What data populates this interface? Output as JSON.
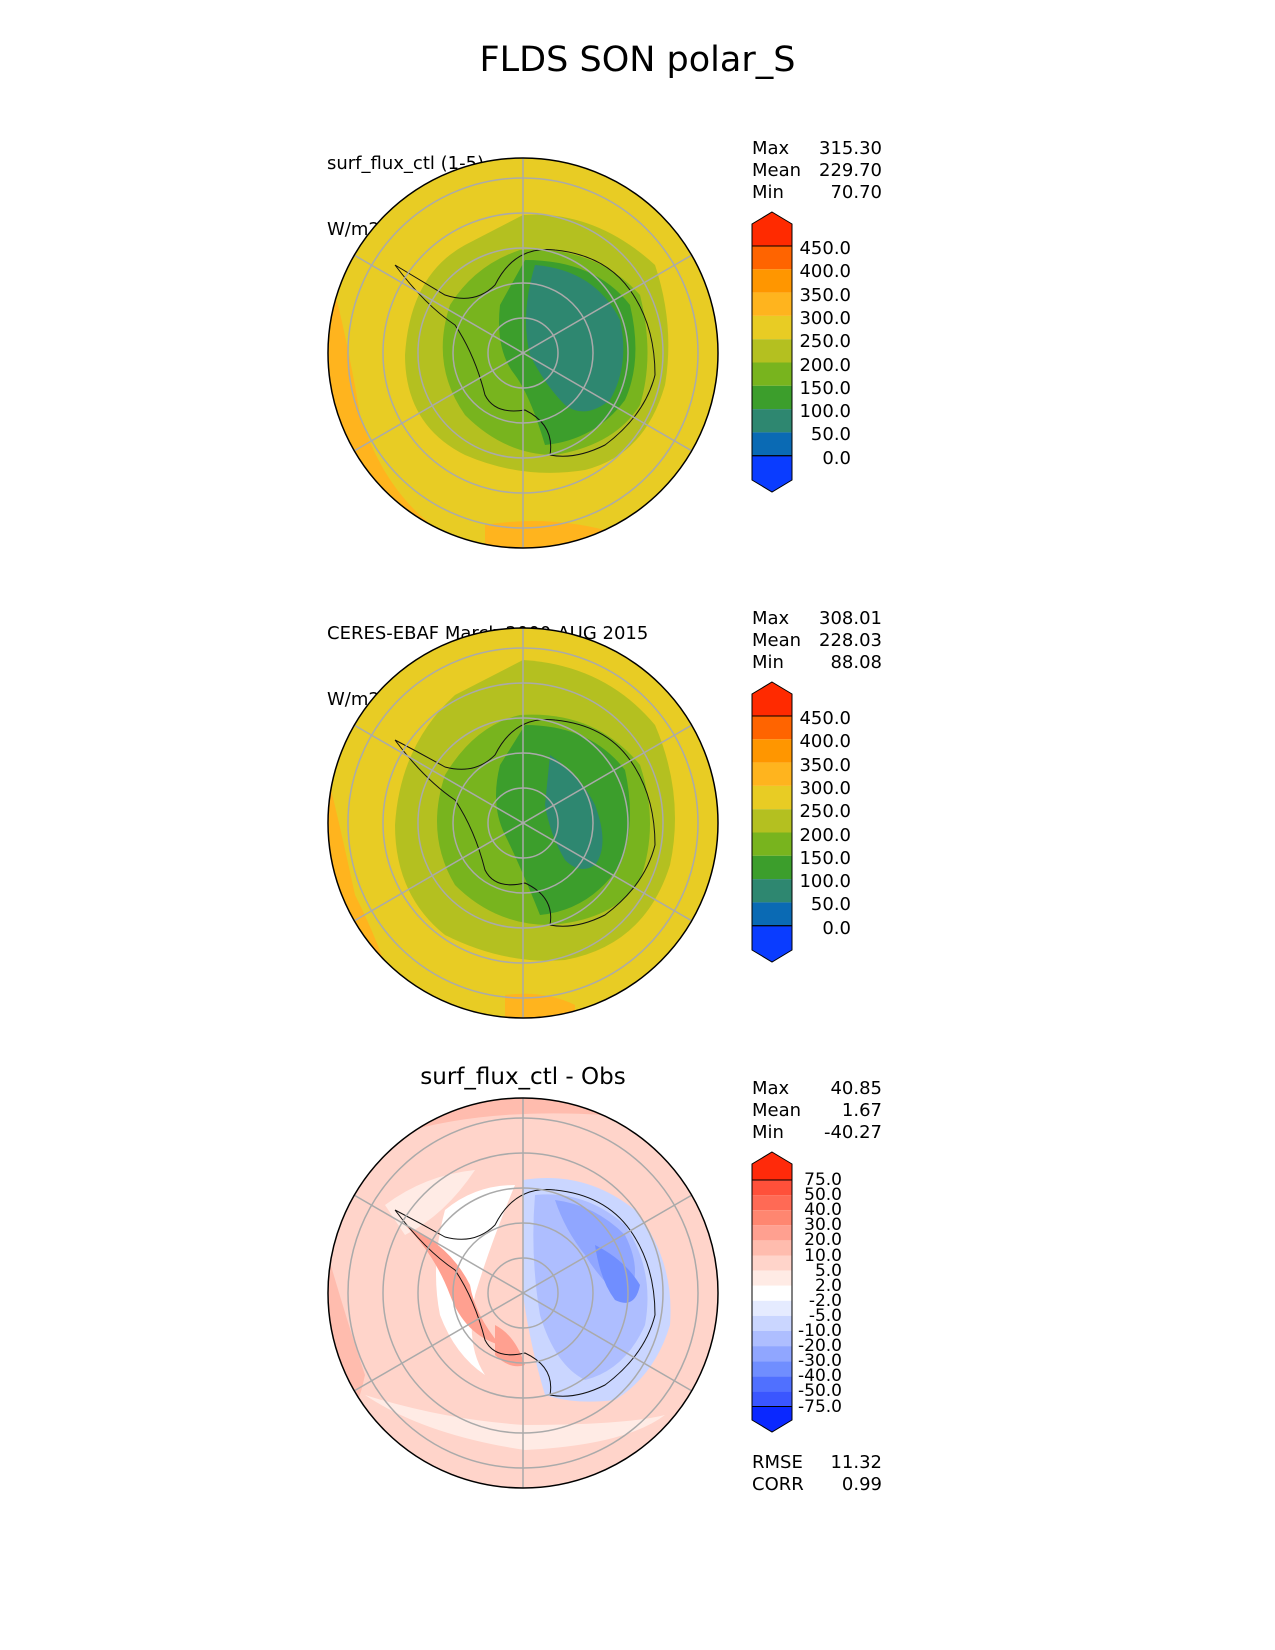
{
  "figure": {
    "title": "FLDS SON polar_S"
  },
  "panels": [
    {
      "title_line1": "surf_flux_ctl (1-5)",
      "title_line2": "W/m2",
      "stats": [
        {
          "label": "Max",
          "value": "315.30"
        },
        {
          "label": "Mean",
          "value": "229.70"
        },
        {
          "label": "Min",
          "value": "70.70"
        }
      ]
    },
    {
      "title_line1": "CERES-EBAF March 2000-AUG 2015",
      "title_line2": "W/m2",
      "stats": [
        {
          "label": "Max",
          "value": "308.01"
        },
        {
          "label": "Mean",
          "value": "228.03"
        },
        {
          "label": "Min",
          "value": "88.08"
        }
      ]
    },
    {
      "title": "surf_flux_ctl - Obs",
      "stats": [
        {
          "label": "Max",
          "value": "40.85"
        },
        {
          "label": "Mean",
          "value": "1.67"
        },
        {
          "label": "Min",
          "value": "-40.27"
        }
      ],
      "extra_stats": [
        {
          "label": "RMSE",
          "value": "11.32"
        },
        {
          "label": "CORR",
          "value": "0.99"
        }
      ]
    }
  ],
  "colorbars": {
    "abs": {
      "labels": [
        "450.0",
        "400.0",
        "350.0",
        "300.0",
        "250.0",
        "200.0",
        "150.0",
        "100.0",
        "50.0",
        "0.0"
      ],
      "colors": [
        "#ff2a00",
        "#ff6400",
        "#ff9600",
        "#ffb41e",
        "#e8cc24",
        "#b4c020",
        "#78b41e",
        "#3c9e2c",
        "#2e8770",
        "#0a6ab4",
        "#0a3cff"
      ]
    },
    "diff": {
      "labels": [
        "75.0",
        "50.0",
        "40.0",
        "30.0",
        "20.0",
        "10.0",
        "5.0",
        "2.0",
        "-2.0",
        "-5.0",
        "-10.0",
        "-20.0",
        "-30.0",
        "-40.0",
        "-50.0",
        "-75.0"
      ],
      "colors": [
        "#ff2a0a",
        "#ff503a",
        "#ff6a55",
        "#ff8670",
        "#ffa090",
        "#ffbcae",
        "#ffd4ca",
        "#ffebe5",
        "#ffffff",
        "#e5ebff",
        "#cad6ff",
        "#aebeff",
        "#90a6ff",
        "#708eff",
        "#5070ff",
        "#3a56ff",
        "#0a28ff"
      ]
    }
  }
}
